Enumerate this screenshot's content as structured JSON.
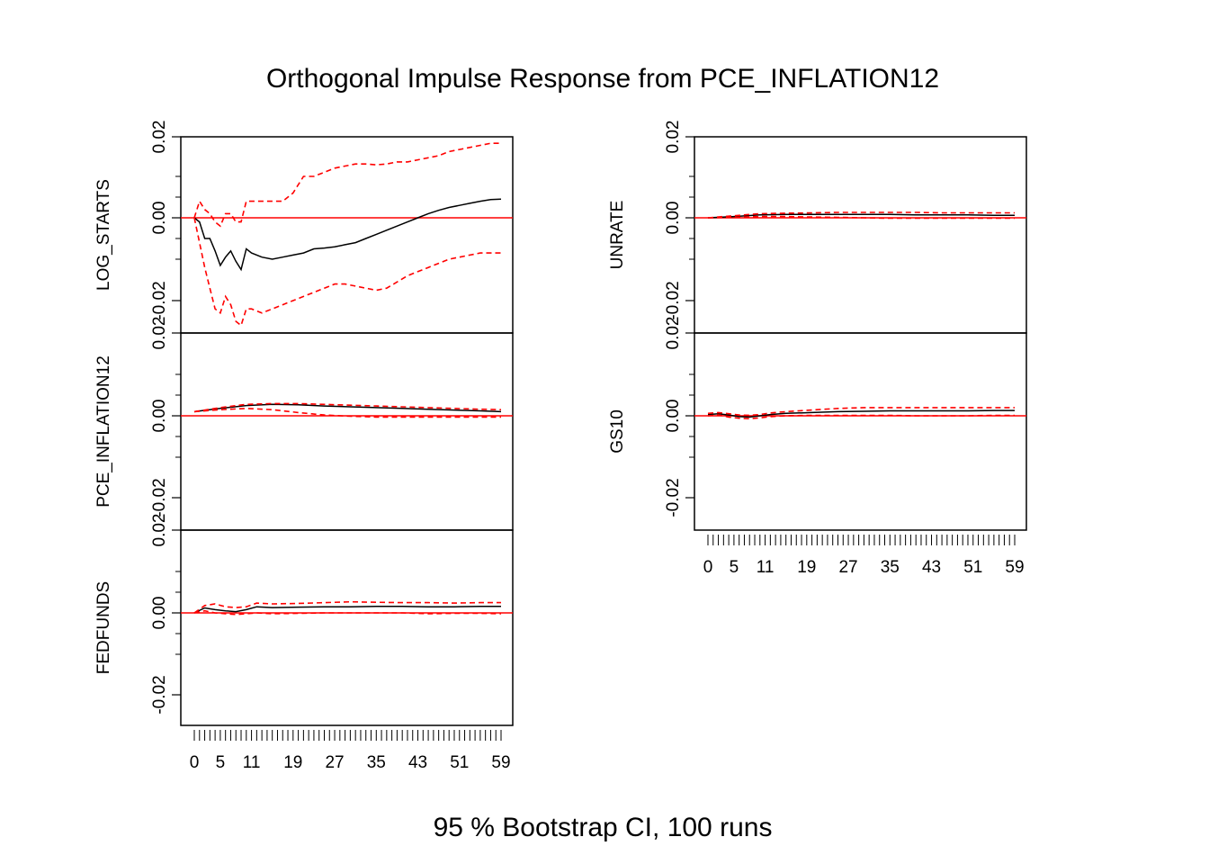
{
  "title": "Orthogonal Impulse Response from PCE_INFLATION12",
  "caption": "95 % Bootstrap CI,  100 runs",
  "colors": {
    "response": "#000000",
    "ci": "#ff0000",
    "zero_line": "#ff0000",
    "frame": "#000000"
  },
  "chart_data": [
    {
      "type": "line",
      "panel": "left-top",
      "ylabel": "LOG_STARTS",
      "ylim": [
        -0.025,
        0.02
      ],
      "yticks": [
        "0.02",
        "0.00",
        "-0.02"
      ],
      "x": [
        0,
        1,
        2,
        3,
        4,
        5,
        6,
        7,
        8,
        9,
        10,
        11,
        13,
        15,
        17,
        19,
        21,
        23,
        25,
        27,
        29,
        31,
        33,
        35,
        37,
        39,
        41,
        43,
        45,
        47,
        49,
        51,
        53,
        55,
        57,
        59
      ],
      "series": [
        {
          "role": "response",
          "values": [
            0.0,
            -0.001,
            -0.005,
            -0.005,
            -0.008,
            -0.0115,
            -0.0095,
            -0.008,
            -0.0105,
            -0.0125,
            -0.0075,
            -0.0085,
            -0.0095,
            -0.01,
            -0.0095,
            -0.009,
            -0.0085,
            -0.0075,
            -0.0073,
            -0.007,
            -0.0065,
            -0.006,
            -0.005,
            -0.004,
            -0.003,
            -0.002,
            -0.001,
            0.0,
            0.001,
            0.0018,
            0.0025,
            0.003,
            0.0035,
            0.004,
            0.0044,
            0.0045
          ]
        },
        {
          "role": "upper",
          "values": [
            0.0,
            0.004,
            0.002,
            0.001,
            -0.001,
            -0.002,
            0.001,
            0.001,
            -0.001,
            -0.001,
            0.004,
            0.004,
            0.004,
            0.004,
            0.004,
            0.006,
            0.01,
            0.01,
            0.011,
            0.012,
            0.0125,
            0.013,
            0.013,
            0.0128,
            0.013,
            0.0135,
            0.0135,
            0.014,
            0.0145,
            0.015,
            0.016,
            0.0165,
            0.017,
            0.0175,
            0.018,
            0.018
          ]
        },
        {
          "role": "lower",
          "values": [
            0.0,
            -0.006,
            -0.012,
            -0.017,
            -0.022,
            -0.023,
            -0.019,
            -0.021,
            -0.025,
            -0.026,
            -0.022,
            -0.022,
            -0.023,
            -0.022,
            -0.021,
            -0.02,
            -0.019,
            -0.018,
            -0.017,
            -0.016,
            -0.016,
            -0.0165,
            -0.017,
            -0.0175,
            -0.017,
            -0.0155,
            -0.014,
            -0.013,
            -0.012,
            -0.011,
            -0.01,
            -0.0095,
            -0.009,
            -0.0085,
            -0.0085,
            -0.0085
          ]
        }
      ]
    },
    {
      "type": "line",
      "panel": "left-middle",
      "ylabel": "PCE_INFLATION12",
      "ylim": [
        -0.028,
        0.02
      ],
      "yticks": [
        "0.02",
        "0.00",
        "-0.02"
      ],
      "x": [
        0,
        5,
        10,
        15,
        20,
        25,
        30,
        35,
        40,
        45,
        50,
        55,
        59
      ],
      "series": [
        {
          "role": "response",
          "values": [
            0.001,
            0.0018,
            0.0025,
            0.0028,
            0.0027,
            0.0024,
            0.0022,
            0.002,
            0.0018,
            0.0016,
            0.0014,
            0.0012,
            0.001
          ]
        },
        {
          "role": "upper",
          "values": [
            0.001,
            0.002,
            0.0028,
            0.003,
            0.003,
            0.0028,
            0.0026,
            0.0024,
            0.0022,
            0.002,
            0.0018,
            0.0016,
            0.0015
          ]
        },
        {
          "role": "lower",
          "values": [
            0.001,
            0.0015,
            0.0018,
            0.0015,
            0.0008,
            0.0002,
            -0.0001,
            -0.0003,
            -0.0003,
            -0.0003,
            -0.0003,
            -0.0003,
            -0.0003
          ]
        }
      ]
    },
    {
      "type": "line",
      "panel": "left-bottom",
      "ylabel": "FEDFUNDS",
      "ylim": [
        -0.028,
        0.02
      ],
      "yticks": [
        "0.02",
        "0.00",
        "-0.02"
      ],
      "xticks": [
        "0",
        "5",
        "11",
        "19",
        "27",
        "35",
        "43",
        "51",
        "59"
      ],
      "x": [
        0,
        2,
        4,
        6,
        8,
        10,
        12,
        15,
        20,
        25,
        30,
        35,
        40,
        45,
        50,
        55,
        59
      ],
      "series": [
        {
          "role": "response",
          "values": [
            0.0,
            0.0012,
            0.0008,
            0.0005,
            0.0003,
            0.0008,
            0.0015,
            0.0013,
            0.0014,
            0.0015,
            0.0015,
            0.0016,
            0.0016,
            0.0015,
            0.0015,
            0.0016,
            0.0016
          ]
        },
        {
          "role": "upper",
          "values": [
            0.0,
            0.0018,
            0.0022,
            0.0015,
            0.0013,
            0.0015,
            0.0024,
            0.0022,
            0.0023,
            0.0025,
            0.0027,
            0.0026,
            0.0025,
            0.0025,
            0.0024,
            0.0025,
            0.0025
          ]
        },
        {
          "role": "lower",
          "values": [
            0.0,
            0.0005,
            0.0,
            -0.0002,
            -0.0004,
            -0.0002,
            0.0,
            -0.0002,
            -0.0001,
            0.0,
            0.0,
            0.0,
            0.0,
            -0.0002,
            -0.0001,
            -0.0001,
            -0.0002
          ]
        }
      ]
    },
    {
      "type": "line",
      "panel": "right-top",
      "ylabel": "UNRATE",
      "ylim": [
        -0.028,
        0.02
      ],
      "yticks": [
        "0.02",
        "0.00",
        "-0.02"
      ],
      "x": [
        0,
        5,
        10,
        15,
        20,
        25,
        30,
        35,
        40,
        45,
        50,
        55,
        59
      ],
      "series": [
        {
          "role": "response",
          "values": [
            0.0,
            0.0003,
            0.0007,
            0.0008,
            0.0008,
            0.0008,
            0.0008,
            0.0008,
            0.0007,
            0.0007,
            0.0007,
            0.0006,
            0.0006
          ]
        },
        {
          "role": "upper",
          "values": [
            0.0,
            0.0005,
            0.001,
            0.0011,
            0.0012,
            0.0013,
            0.0013,
            0.0013,
            0.0013,
            0.0012,
            0.0012,
            0.0012,
            0.0012
          ]
        },
        {
          "role": "lower",
          "values": [
            0.0,
            0.0001,
            0.0003,
            0.0003,
            0.0002,
            0.0001,
            0.0,
            -0.0001,
            -0.0001,
            -0.0001,
            -0.0001,
            -0.0001,
            -0.0001
          ]
        }
      ]
    },
    {
      "type": "line",
      "panel": "right-middle",
      "ylabel": "GS10",
      "ylim": [
        -0.028,
        0.02
      ],
      "yticks": [
        "0.02",
        "0.00",
        "-0.02"
      ],
      "xticks": [
        "0",
        "5",
        "11",
        "19",
        "27",
        "35",
        "43",
        "51",
        "59"
      ],
      "x": [
        0,
        2,
        4,
        6,
        8,
        10,
        12,
        15,
        20,
        25,
        30,
        35,
        40,
        45,
        50,
        55,
        59
      ],
      "series": [
        {
          "role": "response",
          "values": [
            0.0003,
            0.0005,
            0.0002,
            -0.0002,
            -0.0003,
            0.0,
            0.0003,
            0.0006,
            0.0008,
            0.001,
            0.0011,
            0.0012,
            0.0012,
            0.0012,
            0.0012,
            0.0013,
            0.0013
          ]
        },
        {
          "role": "upper",
          "values": [
            0.0006,
            0.0008,
            0.0005,
            0.0002,
            0.0001,
            0.0003,
            0.0007,
            0.001,
            0.0014,
            0.0018,
            0.002,
            0.002,
            0.002,
            0.002,
            0.002,
            0.002,
            0.002
          ]
        },
        {
          "role": "lower",
          "values": [
            0.0,
            0.0002,
            -0.0003,
            -0.0006,
            -0.0007,
            -0.0005,
            -0.0002,
            0.0,
            0.0001,
            0.0001,
            0.0001,
            0.0001,
            0.0,
            0.0,
            0.0,
            0.0001,
            0.0001
          ]
        }
      ]
    }
  ]
}
